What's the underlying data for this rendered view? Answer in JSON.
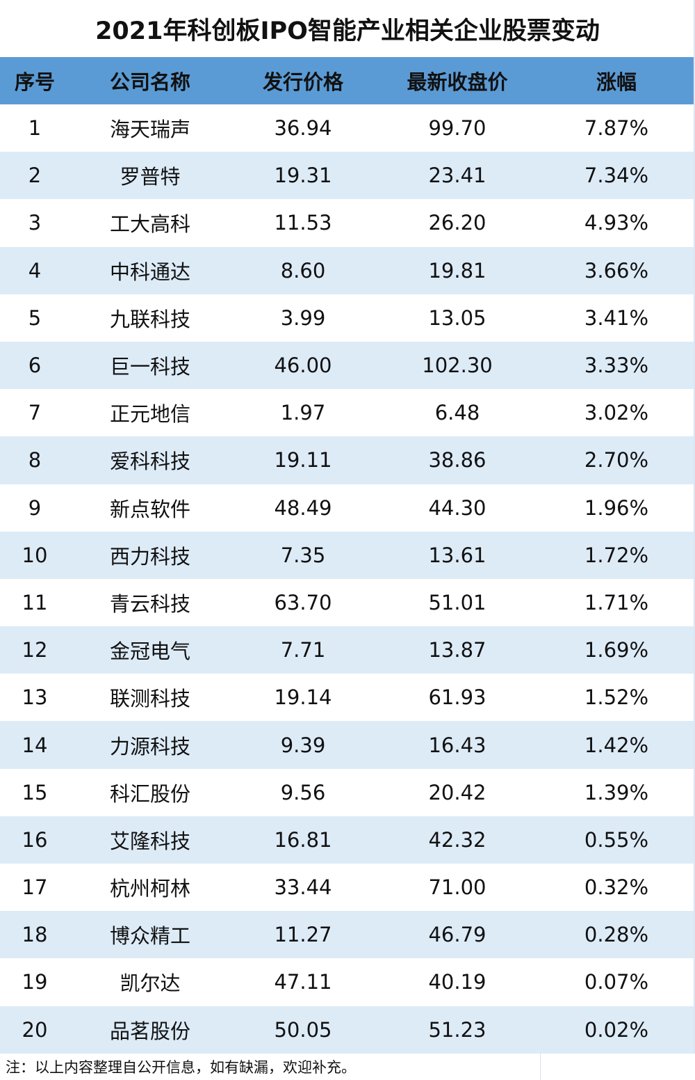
{
  "title": "2021年科创板IPO智能产业相关企业股票变动",
  "headers": [
    "序号",
    "公司名称",
    "发行价格",
    "最新收盘价",
    "涨幅"
  ],
  "rows": [
    [
      "1",
      "海天瑞声",
      "36.94",
      "99.70",
      "7.87%"
    ],
    [
      "2",
      "罗普特",
      "19.31",
      "23.41",
      "7.34%"
    ],
    [
      "3",
      "工大高科",
      "11.53",
      "26.20",
      "4.93%"
    ],
    [
      "4",
      "中科通达",
      "8.60",
      "19.81",
      "3.66%"
    ],
    [
      "5",
      "九联科技",
      "3.99",
      "13.05",
      "3.41%"
    ],
    [
      "6",
      "巨一科技",
      "46.00",
      "102.30",
      "3.33%"
    ],
    [
      "7",
      "正元地信",
      "1.97",
      "6.48",
      "3.02%"
    ],
    [
      "8",
      "爱科科技",
      "19.11",
      "38.86",
      "2.70%"
    ],
    [
      "9",
      "新点软件",
      "48.49",
      "44.30",
      "1.96%"
    ],
    [
      "10",
      "西力科技",
      "7.35",
      "13.61",
      "1.72%"
    ],
    [
      "11",
      "青云科技",
      "63.70",
      "51.01",
      "1.71%"
    ],
    [
      "12",
      "金冠电气",
      "7.71",
      "13.87",
      "1.69%"
    ],
    [
      "13",
      "联测科技",
      "19.14",
      "61.93",
      "1.52%"
    ],
    [
      "14",
      "力源科技",
      "9.39",
      "16.43",
      "1.42%"
    ],
    [
      "15",
      "科汇股份",
      "9.56",
      "20.42",
      "1.39%"
    ],
    [
      "16",
      "艾隆科技",
      "16.81",
      "42.32",
      "0.55%"
    ],
    [
      "17",
      "杭州柯林",
      "33.44",
      "71.00",
      "0.32%"
    ],
    [
      "18",
      "博众精工",
      "11.27",
      "46.79",
      "0.28%"
    ],
    [
      "19",
      "凯尔达",
      "47.11",
      "40.19",
      "0.07%"
    ],
    [
      "20",
      "品茗股份",
      "50.05",
      "51.23",
      "0.02%"
    ]
  ],
  "note": "注：以上内容整理自公开信息，如有缺漏，欢迎补充。",
  "colors": {
    "header_bg": "#5b9bd5",
    "alt_row_bg": "#ddebf7"
  }
}
